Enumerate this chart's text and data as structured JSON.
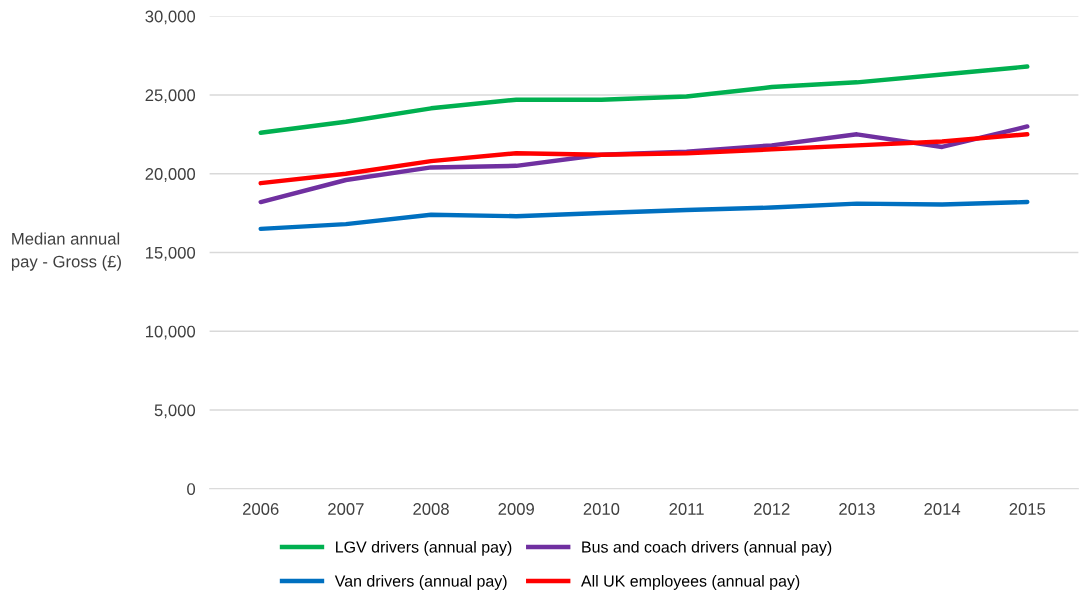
{
  "chart_data": {
    "type": "line",
    "ylabel": "Median annual\npay - Gross (£)",
    "categories": [
      "2006",
      "2007",
      "2008",
      "2009",
      "2010",
      "2011",
      "2012",
      "2013",
      "2014",
      "2015"
    ],
    "series": [
      {
        "name": "LGV drivers (annual pay)",
        "color": "#00b050",
        "values": [
          22600,
          23300,
          24150,
          24700,
          24700,
          24900,
          25500,
          25800,
          26300,
          26800
        ]
      },
      {
        "name": "Van drivers (annual pay)",
        "color": "#0070c0",
        "values": [
          16500,
          16800,
          17400,
          17300,
          17500,
          17700,
          17850,
          18100,
          18050,
          18200
        ]
      },
      {
        "name": "Bus and coach drivers (annual pay)",
        "color": "#7030a0",
        "values": [
          18200,
          19600,
          20400,
          20500,
          21200,
          21400,
          21800,
          22500,
          21700,
          23000
        ]
      },
      {
        "name": "All UK employees (annual pay)",
        "color": "#ff0000",
        "values": [
          19400,
          20000,
          20800,
          21300,
          21200,
          21300,
          21550,
          21800,
          22050,
          22500
        ]
      }
    ],
    "ylim": [
      0,
      30000
    ],
    "yticks": [
      {
        "value": 0,
        "label": "0"
      },
      {
        "value": 5000,
        "label": "5,000"
      },
      {
        "value": 10000,
        "label": "10,000"
      },
      {
        "value": 15000,
        "label": "15,000"
      },
      {
        "value": 20000,
        "label": "20,000"
      },
      {
        "value": 25000,
        "label": "25,000"
      },
      {
        "value": 30000,
        "label": "30,000"
      }
    ],
    "grid": "y",
    "legend": "bottom",
    "marker": "none",
    "line_style": "solid"
  }
}
